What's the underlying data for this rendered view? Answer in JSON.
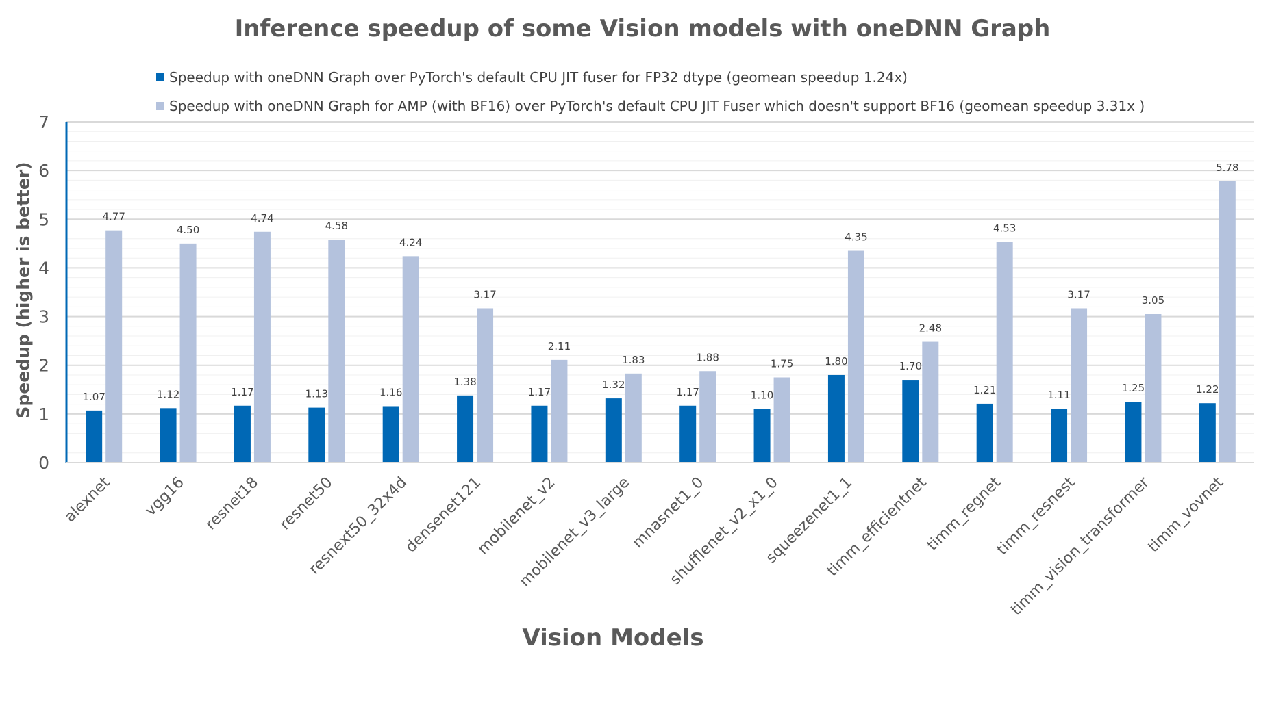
{
  "chart_data": {
    "type": "bar",
    "title": "Inference speedup of some Vision models with oneDNN Graph",
    "xlabel": "Vision Models",
    "ylabel": "Speedup  (higher is better)",
    "ylim": [
      0,
      7
    ],
    "yticks": [
      0,
      1,
      2,
      3,
      4,
      5,
      6,
      7
    ],
    "grid": true,
    "legend_position": "top",
    "categories": [
      "alexnet",
      "vgg16",
      "resnet18",
      "resnet50",
      "resnext50_32x4d",
      "densenet121",
      "mobilenet_v2",
      "mobilenet_v3_large",
      "mnasnet1_0",
      "shufflenet_v2_x1_0",
      "squeezenet1_1",
      "timm_efficientnet",
      "timm_regnet",
      "timm_resnest",
      "timm_vision_transformer",
      "timm_vovnet"
    ],
    "series": [
      {
        "name": "Speedup with oneDNN Graph over PyTorch's default CPU JIT fuser for FP32 dtype (geomean speedup 1.24x)",
        "color": "#0068b5",
        "values": [
          1.07,
          1.12,
          1.17,
          1.13,
          1.16,
          1.38,
          1.17,
          1.32,
          1.17,
          1.1,
          1.8,
          1.7,
          1.21,
          1.11,
          1.25,
          1.22
        ]
      },
      {
        "name": "Speedup with oneDNN Graph for AMP (with BF16) over PyTorch's default CPU JIT Fuser which doesn't support BF16 (geomean speedup 3.31x )",
        "color": "#b4c2dd",
        "values": [
          4.77,
          4.5,
          4.74,
          4.58,
          4.24,
          3.17,
          2.11,
          1.83,
          1.88,
          1.75,
          4.35,
          2.48,
          4.53,
          3.17,
          3.05,
          5.78
        ]
      }
    ]
  }
}
